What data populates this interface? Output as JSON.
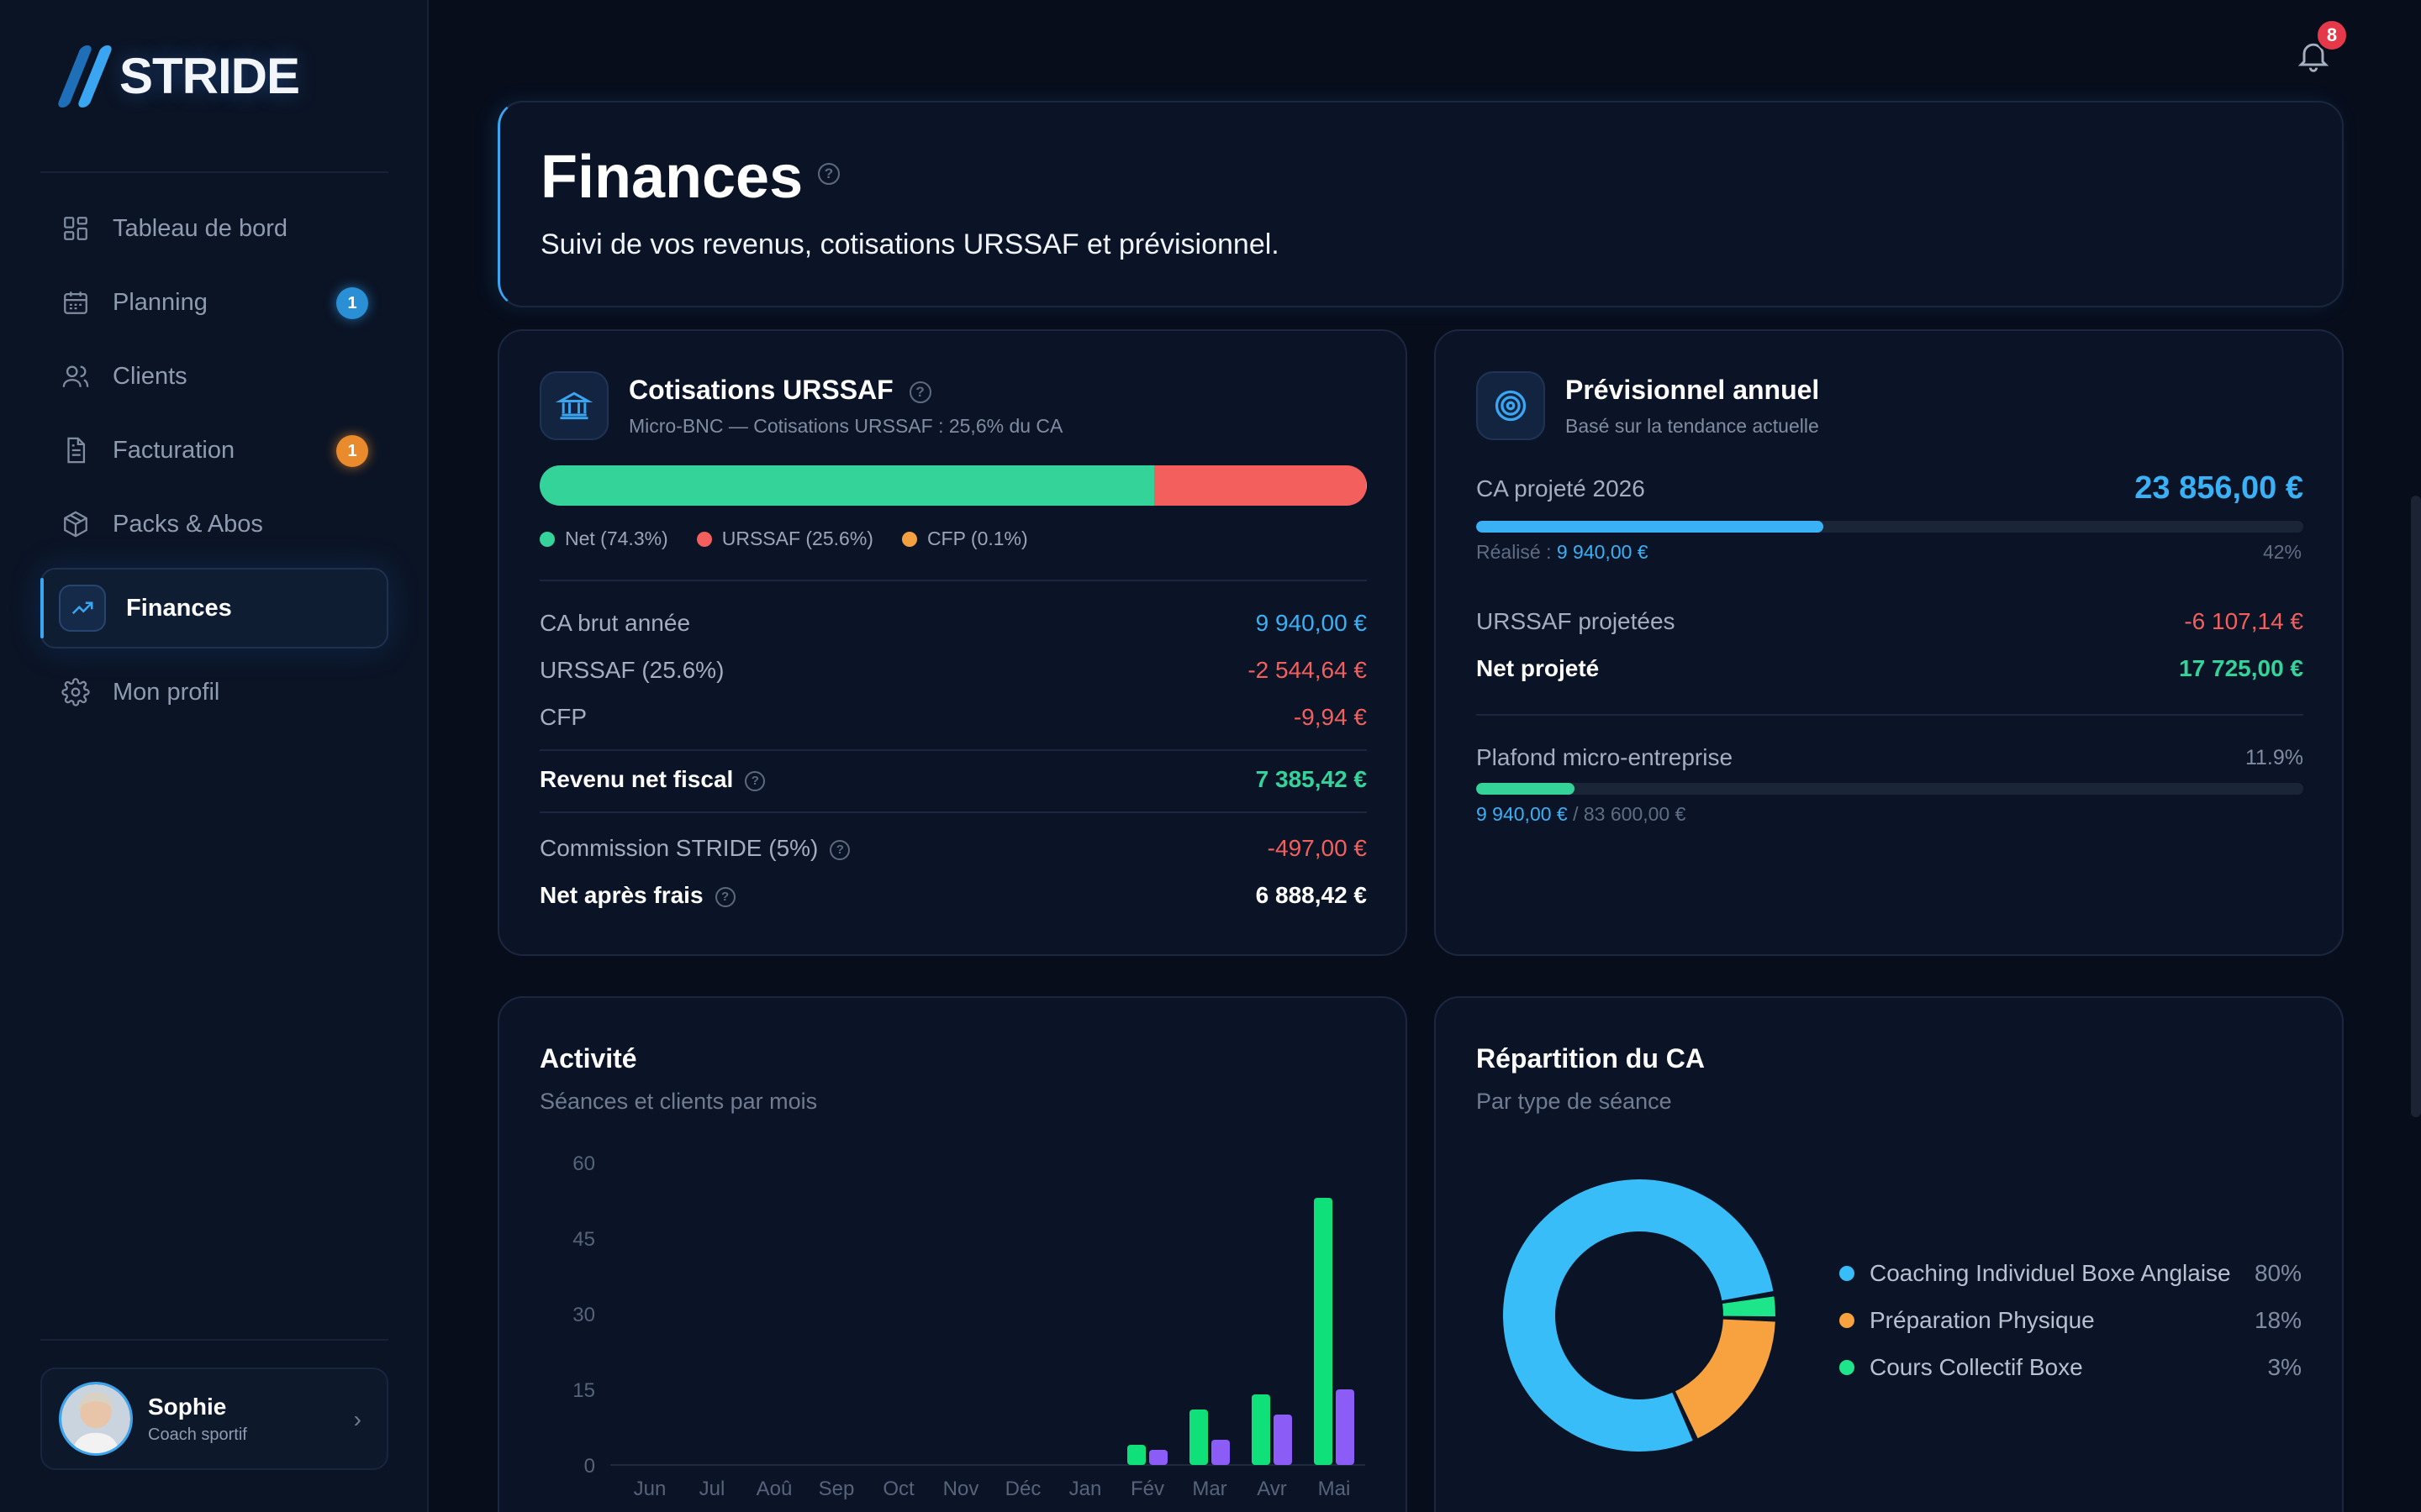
{
  "brand": {
    "name": "STRIDE"
  },
  "nav": [
    {
      "label": "Tableau de bord",
      "icon": "dashboard-icon"
    },
    {
      "label": "Planning",
      "icon": "calendar-icon",
      "badge": "1",
      "badge_color": "#2b8fd6"
    },
    {
      "label": "Clients",
      "icon": "users-icon"
    },
    {
      "label": "Facturation",
      "icon": "document-icon",
      "badge": "1",
      "badge_color": "#e98a2c"
    },
    {
      "label": "Packs & Abos",
      "icon": "package-icon"
    },
    {
      "label": "Finances",
      "icon": "trending-up-icon",
      "active": true
    },
    {
      "label": "Mon profil",
      "icon": "gear-icon"
    }
  ],
  "profile": {
    "name": "Sophie",
    "role": "Coach sportif"
  },
  "notifications": {
    "count": "8"
  },
  "header": {
    "title": "Finances",
    "subtitle": "Suivi de vos revenus, cotisations URSSAF et prévisionnel."
  },
  "urssaf": {
    "title": "Cotisations URSSAF",
    "subtitle": "Micro-BNC — Cotisations URSSAF : 25,6% du CA",
    "split": [
      {
        "label": "Net (74.3%)",
        "percent": 74.3,
        "color": "#34d399"
      },
      {
        "label": "URSSAF (25.6%)",
        "percent": 25.6,
        "color": "#f25f5c"
      },
      {
        "label": "CFP (0.1%)",
        "percent": 0.1,
        "color": "#f5a040"
      }
    ],
    "rows": [
      {
        "label": "CA brut année",
        "value": "9 940,00 €",
        "color": "#3ab0f5"
      },
      {
        "label": "URSSAF (25.6%)",
        "value": "-2 544,64 €",
        "color": "#f25f5c"
      },
      {
        "label": "CFP",
        "value": "-9,94 €",
        "color": "#f25f5c"
      },
      {
        "label": "Revenu net fiscal",
        "value": "7 385,42 €",
        "color": "#34d399"
      },
      {
        "label": "Commission STRIDE (5%)",
        "value": "-497,00 €",
        "color": "#f25f5c"
      },
      {
        "label": "Net après frais",
        "value": "6 888,42 €",
        "color": "#ffffff"
      }
    ]
  },
  "forecast": {
    "title": "Prévisionnel annuel",
    "subtitle": "Basé sur la tendance actuelle",
    "projected_label": "CA projeté 2026",
    "projected_value": "23 856,00 €",
    "realized_label": "Réalisé :",
    "realized_value": "9 940,00 €",
    "realized_pct": "42%",
    "realized_fraction": 0.42,
    "urssaf_label": "URSSAF projetées",
    "urssaf_value": "-6 107,14 €",
    "net_label": "Net projeté",
    "net_value": "17 725,00 €",
    "ceiling_label": "Plafond micro-entreprise",
    "ceiling_pct": "11.9%",
    "ceiling_fraction": 0.119,
    "ceiling_current": "9 940,00 €",
    "ceiling_max": "/ 83 600,00 €"
  },
  "activity": {
    "title": "Activité",
    "subtitle": "Séances et clients par mois"
  },
  "repartition": {
    "title": "Répartition du CA",
    "subtitle": "Par type de séance"
  },
  "chart_data": [
    {
      "type": "bar",
      "categories": [
        "Jun",
        "Jul",
        "Aoû",
        "Sep",
        "Oct",
        "Nov",
        "Déc",
        "Jan",
        "Fév",
        "Mar",
        "Avr",
        "Mai"
      ],
      "series": [
        {
          "values": [
            0,
            0,
            0,
            0,
            0,
            0,
            0,
            0,
            4,
            11,
            14,
            53
          ],
          "color": "#10e07a"
        },
        {
          "values": [
            0,
            0,
            0,
            0,
            0,
            0,
            0,
            0,
            3,
            5,
            10,
            15
          ],
          "color": "#8b5cf6"
        }
      ],
      "yticks": [
        "60",
        "45",
        "30",
        "15",
        "0"
      ],
      "ylim": [
        0,
        60
      ]
    },
    {
      "type": "pie",
      "categories": [
        "Coaching Individuel Boxe Anglaise",
        "Préparation Physique",
        "Cours Collectif Boxe"
      ],
      "values": [
        80,
        18,
        3
      ],
      "labels": [
        "80%",
        "18%",
        "3%"
      ],
      "colors": [
        "#38bdf8",
        "#f7a23e",
        "#1de58a"
      ]
    }
  ]
}
